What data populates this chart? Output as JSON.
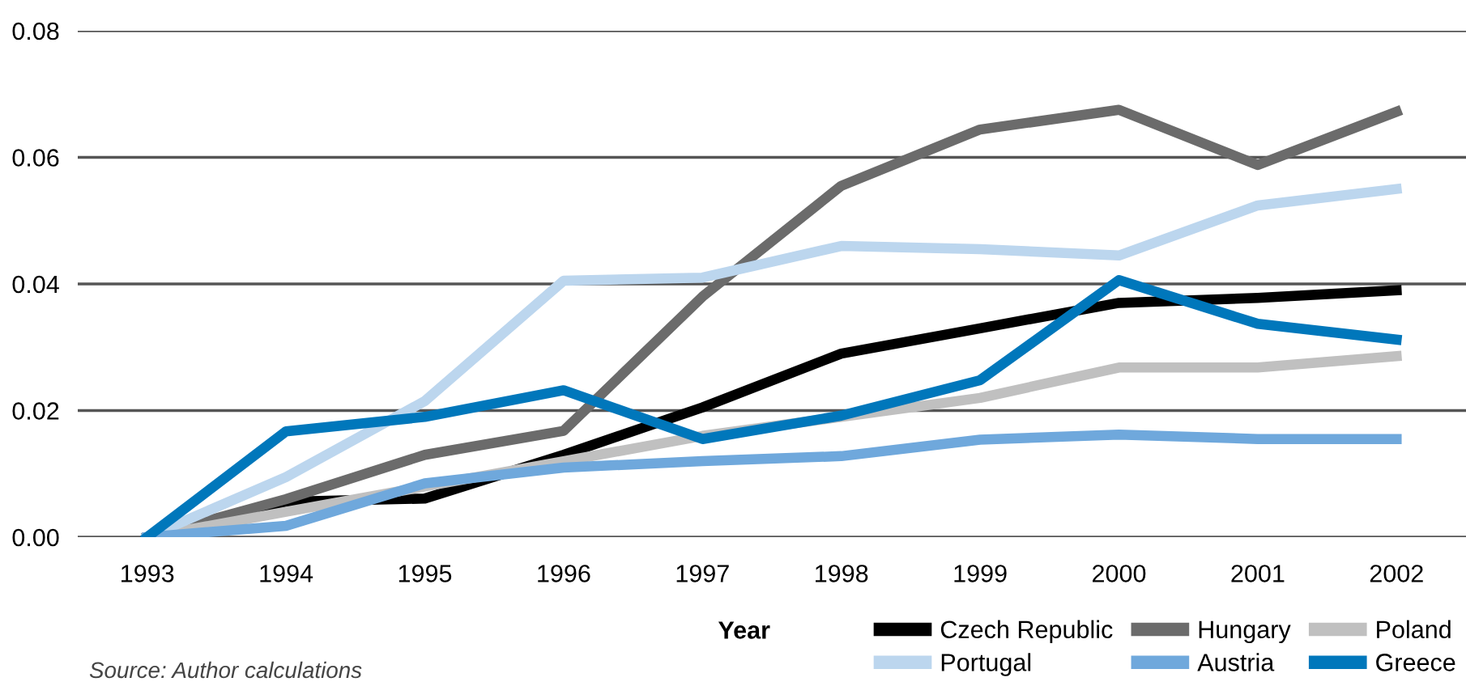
{
  "chart_data": {
    "type": "line",
    "xlabel": "Year",
    "categories": [
      "1993",
      "1994",
      "1995",
      "1996",
      "1997",
      "1998",
      "1999",
      "2000",
      "2001",
      "2002"
    ],
    "series": [
      {
        "name": "Czech Republic",
        "color": "#000000",
        "values": [
          0,
          0.0056,
          0.0061,
          0.013,
          0.0205,
          0.029,
          0.033,
          0.037,
          0.0378,
          0.039
        ]
      },
      {
        "name": "Hungary",
        "color": "#6b6b6b",
        "values": [
          0,
          0.006,
          0.013,
          0.0168,
          0.038,
          0.0555,
          0.0644,
          0.0675,
          0.0588,
          0.0672
        ]
      },
      {
        "name": "Poland",
        "color": "#c0c0c0",
        "values": [
          0,
          0.004,
          0.008,
          0.012,
          0.016,
          0.019,
          0.022,
          0.0268,
          0.0268,
          0.0286
        ]
      },
      {
        "name": "Portugal",
        "color": "#bcd6ee",
        "values": [
          0,
          0.0095,
          0.0215,
          0.0405,
          0.041,
          0.046,
          0.0455,
          0.0445,
          0.0524,
          0.055
        ]
      },
      {
        "name": "Austria",
        "color": "#6fa8dc",
        "values": [
          0,
          0.0018,
          0.0085,
          0.011,
          0.012,
          0.0128,
          0.0154,
          0.0162,
          0.0155,
          0.0155
        ]
      },
      {
        "name": "Greece",
        "color": "#0077bb",
        "values": [
          0,
          0.0167,
          0.019,
          0.0232,
          0.0155,
          0.0192,
          0.0248,
          0.0406,
          0.0337,
          0.0312
        ]
      }
    ],
    "ylim": [
      0,
      0.08
    ],
    "yticks": [
      {
        "value": 0,
        "label": "0.00"
      },
      {
        "value": 0.02,
        "label": "0.02"
      },
      {
        "value": 0.04,
        "label": "0.04"
      },
      {
        "value": 0.06,
        "label": "0.06"
      },
      {
        "value": 0.08,
        "label": "0.08"
      }
    ],
    "grid": "y",
    "legend": "bottom right",
    "marker": "none",
    "line_style": "solid",
    "annotations": [
      "Source: Author calculations"
    ]
  }
}
